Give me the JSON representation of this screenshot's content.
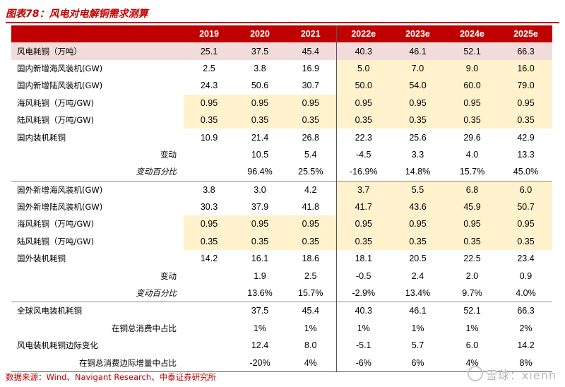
{
  "title": "图表78：风电对电解铜需求测算",
  "headers": [
    "",
    "2019",
    "2020",
    "2021",
    "2022e",
    "2023e",
    "2024e",
    "2025e"
  ],
  "rows": [
    {
      "label": "风电耗铜（万吨）",
      "values": [
        "25.1",
        "37.5",
        "45.4",
        "40.3",
        "46.1",
        "52.1",
        "66.3"
      ],
      "style": "pink"
    },
    {
      "label": "国内新增海风装机(GW)",
      "values": [
        "2.5",
        "3.8",
        "16.9",
        "5.0",
        "7.0",
        "9.0",
        "16.0"
      ],
      "highlight": [
        3,
        4,
        5,
        6
      ]
    },
    {
      "label": "国内新增陆风装机(GW)",
      "values": [
        "24.3",
        "50.6",
        "30.7",
        "50.0",
        "54.0",
        "60.0",
        "79.0"
      ],
      "highlight": [
        3,
        4,
        5,
        6
      ]
    },
    {
      "label": "海风耗铜（万吨/GW)",
      "values": [
        "0.95",
        "0.95",
        "0.95",
        "0.95",
        "0.95",
        "0.95",
        "0.95"
      ],
      "highlight": [
        0,
        1,
        2,
        3,
        4,
        5,
        6
      ]
    },
    {
      "label": "陆风耗铜（万吨/GW)",
      "values": [
        "0.35",
        "0.35",
        "0.35",
        "0.35",
        "0.35",
        "0.35",
        "0.35"
      ],
      "highlight": [
        0,
        1,
        2,
        3,
        4,
        5,
        6
      ]
    },
    {
      "label": "国内装机耗铜",
      "values": [
        "10.9",
        "21.4",
        "26.8",
        "22.3",
        "25.6",
        "29.6",
        "42.9"
      ]
    },
    {
      "label": "变动",
      "values": [
        "",
        "10.5",
        "5.4",
        "-4.5",
        "3.3",
        "4.0",
        "13.3"
      ],
      "align": "indent"
    },
    {
      "label": "变动百分比",
      "values": [
        "",
        "96.4%",
        "25.5%",
        "-16.9%",
        "14.8%",
        "15.7%",
        "45.0%"
      ],
      "align": "indent-italic"
    },
    {
      "label": "国外新增海风装机(GW)",
      "values": [
        "3.8",
        "3.0",
        "4.2",
        "3.7",
        "5.5",
        "6.8",
        "6.0"
      ],
      "highlight": [
        3,
        4,
        5,
        6
      ],
      "sep": true
    },
    {
      "label": "国外新增陆风装机(GW)",
      "values": [
        "30.3",
        "37.9",
        "41.8",
        "41.7",
        "43.6",
        "45.9",
        "50.7"
      ],
      "highlight": [
        3,
        4,
        5,
        6
      ]
    },
    {
      "label": "海风耗铜（万吨/GW)",
      "values": [
        "0.95",
        "0.95",
        "0.95",
        "0.95",
        "0.95",
        "0.95",
        "0.95"
      ],
      "highlight": [
        0,
        1,
        2,
        3,
        4,
        5,
        6
      ]
    },
    {
      "label": "陆风耗铜（万吨/GW)",
      "values": [
        "0.35",
        "0.35",
        "0.35",
        "0.35",
        "0.35",
        "0.35",
        "0.35"
      ],
      "highlight": [
        0,
        1,
        2,
        3,
        4,
        5,
        6
      ]
    },
    {
      "label": "国外装机耗铜",
      "values": [
        "14.2",
        "16.1",
        "18.6",
        "18.1",
        "20.5",
        "22.5",
        "23.4"
      ]
    },
    {
      "label": "变动",
      "values": [
        "",
        "1.9",
        "2.5",
        "-0.5",
        "2.4",
        "2.0",
        "0.9"
      ],
      "align": "indent"
    },
    {
      "label": "变动百分比",
      "values": [
        "",
        "13.6%",
        "15.7%",
        "-2.9%",
        "13.4%",
        "9.7%",
        "4.0%"
      ],
      "align": "indent-italic"
    },
    {
      "label": "全球风电装机耗铜",
      "values": [
        "",
        "37.5",
        "45.4",
        "40.3",
        "46.1",
        "52.1",
        "66.3"
      ],
      "sep": true
    },
    {
      "label": "在铜总消费中占比",
      "values": [
        "",
        "1%",
        "1%",
        "1%",
        "1%",
        "1%",
        "2%"
      ],
      "align": "indent"
    },
    {
      "label": "风电装机耗铜边际变化",
      "values": [
        "",
        "12.4",
        "8.0",
        "-5.1",
        "5.7",
        "6.0",
        "14.2"
      ]
    },
    {
      "label": "在铜总消费边际增量中占比",
      "values": [
        "",
        "-20%",
        "4%",
        "-6%",
        "6%",
        "4%",
        "8%"
      ],
      "align": "indent",
      "last": true
    }
  ],
  "source": "数据来源：Wind、Navigant Research、中泰证券研究所",
  "watermark": "雪球：xienh",
  "colors": {
    "accent": "#c00000",
    "highlight": "#fff2cc",
    "pink": "#f2dcdb"
  }
}
